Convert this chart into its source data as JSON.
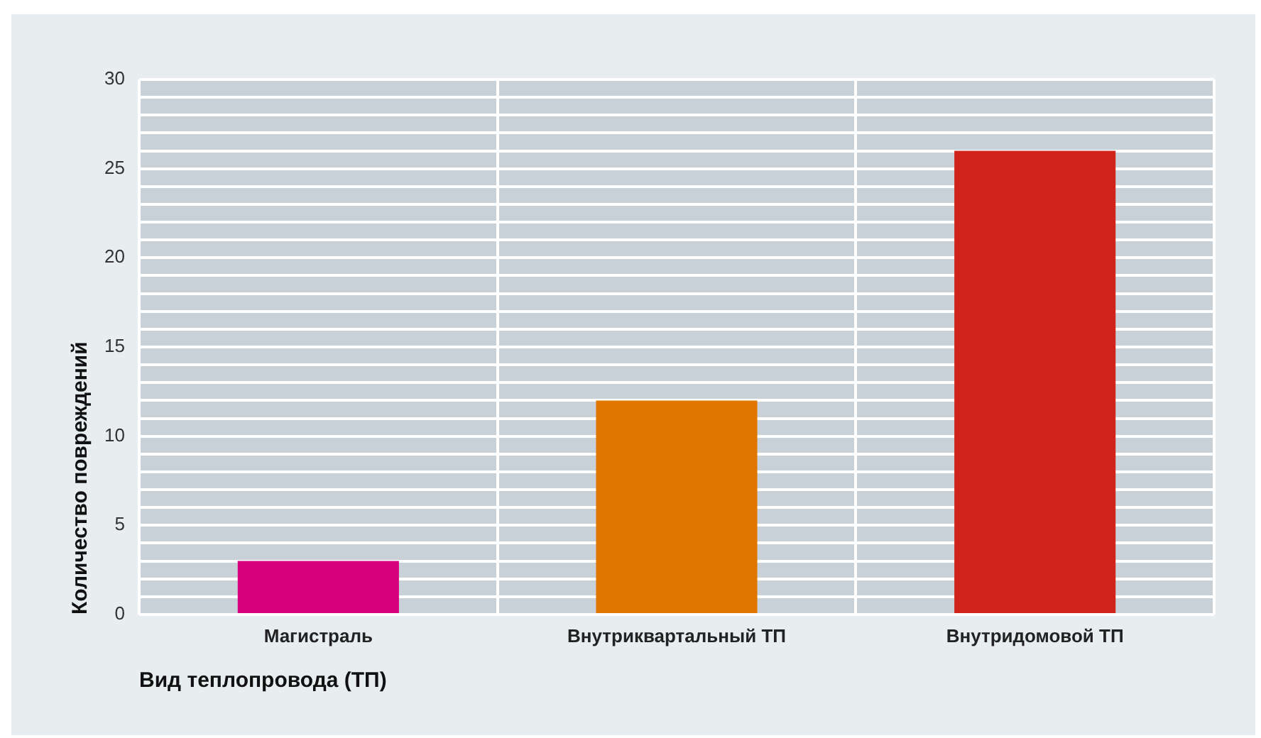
{
  "chart_data": {
    "type": "bar",
    "xlabel": "Вид теплопровода (ТП)",
    "ylabel": "Количество повреждений",
    "categories": [
      "Магистраль",
      "Внутриквартальный ТП",
      "Внутридомовой ТП"
    ],
    "values": [
      3,
      12,
      26
    ],
    "colors": [
      "#d6007f",
      "#e07500",
      "#d0231a"
    ],
    "ylim": [
      0,
      30
    ],
    "yticks": [
      0,
      {
        "value": 1,
        "label": null
      },
      {
        "value": 2,
        "label": null
      },
      {
        "value": 3,
        "label": null
      },
      {
        "value": 4,
        "label": null
      },
      5,
      {
        "value": 6,
        "label": null
      },
      {
        "value": 7,
        "label": null
      },
      {
        "value": 8,
        "label": null
      },
      {
        "value": 9,
        "label": null
      },
      10,
      {
        "value": 11,
        "label": null
      },
      {
        "value": 12,
        "label": null
      },
      {
        "value": 13,
        "label": null
      },
      {
        "value": 14,
        "label": null
      },
      15,
      {
        "value": 16,
        "label": null
      },
      {
        "value": 17,
        "label": null
      },
      {
        "value": 18,
        "label": null
      },
      {
        "value": 19,
        "label": null
      },
      20,
      {
        "value": 21,
        "label": null
      },
      {
        "value": 22,
        "label": null
      },
      {
        "value": 23,
        "label": null
      },
      {
        "value": 24,
        "label": null
      },
      25,
      {
        "value": 26,
        "label": null
      },
      {
        "value": 27,
        "label": null
      },
      {
        "value": 28,
        "label": null
      },
      {
        "value": 29,
        "label": null
      },
      30
    ],
    "grid": true
  }
}
